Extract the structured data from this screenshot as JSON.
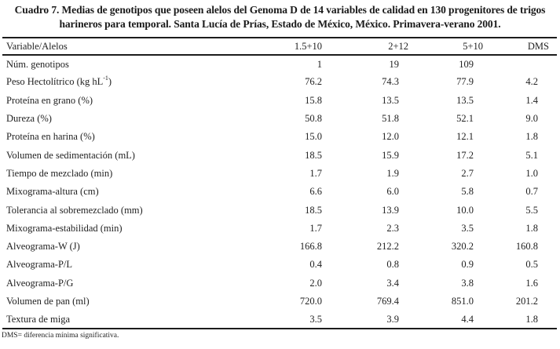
{
  "title": {
    "line1": "Cuadro 7. Medias de genotipos que poseen alelos del Genoma D de 14 variables de calidad en 130 progenitores de trigos",
    "line2": "harineros para temporal. Santa Lucía de Prías, Estado de México, México. Primavera-verano 2001."
  },
  "table": {
    "columns": [
      "Variable/Alelos",
      "1.5+10",
      "2+12",
      "5+10",
      "DMS"
    ],
    "rows": [
      {
        "label": "Núm. genotipos",
        "values": [
          "1",
          "19",
          "109",
          ""
        ]
      },
      {
        "label": "Peso Hectolítrico (kg hL",
        "label_sup": "-1",
        "label_tail": ")",
        "values": [
          "76.2",
          "74.3",
          "77.9",
          "4.2"
        ]
      },
      {
        "label": "Proteína en grano (%)",
        "values": [
          "15.8",
          "13.5",
          "13.5",
          "1.4"
        ]
      },
      {
        "label": "Dureza (%)",
        "values": [
          "50.8",
          "51.8",
          "52.1",
          "9.0"
        ]
      },
      {
        "label": "Proteína en harina (%)",
        "values": [
          "15.0",
          "12.0",
          "12.1",
          "1.8"
        ]
      },
      {
        "label": "Volumen de sedimentación (mL)",
        "values": [
          "18.5",
          "15.9",
          "17.2",
          "5.1"
        ]
      },
      {
        "label": "Tiempo de mezclado (min)",
        "values": [
          "1.7",
          "1.9",
          "2.7",
          "1.0"
        ]
      },
      {
        "label": "Mixograma-altura (cm)",
        "values": [
          "6.6",
          "6.0",
          "5.8",
          "0.7"
        ]
      },
      {
        "label": "Tolerancia al sobremezclado (mm)",
        "values": [
          "18.5",
          "13.9",
          "10.0",
          "5.5"
        ]
      },
      {
        "label": "Mixograma-estabilidad (min)",
        "values": [
          "1.7",
          "2.3",
          "3.5",
          "1.8"
        ]
      },
      {
        "label": "Alveograma-W (J)",
        "values": [
          "166.8",
          "212.2",
          "320.2",
          "160.8"
        ]
      },
      {
        "label": "Alveograma-P/L",
        "values": [
          "0.4",
          "0.8",
          "0.9",
          "0.5"
        ]
      },
      {
        "label": "Alveograma-P/G",
        "values": [
          "2.0",
          "3.4",
          "3.8",
          "1.6"
        ]
      },
      {
        "label": "Volumen de pan (ml)",
        "values": [
          "720.0",
          "769.4",
          "851.0",
          "201.2"
        ]
      },
      {
        "label": "Textura de miga",
        "values": [
          "3.5",
          "3.9",
          "4.4",
          "1.8"
        ]
      }
    ]
  },
  "footnote": "DMS= diferencia mínima significativa."
}
